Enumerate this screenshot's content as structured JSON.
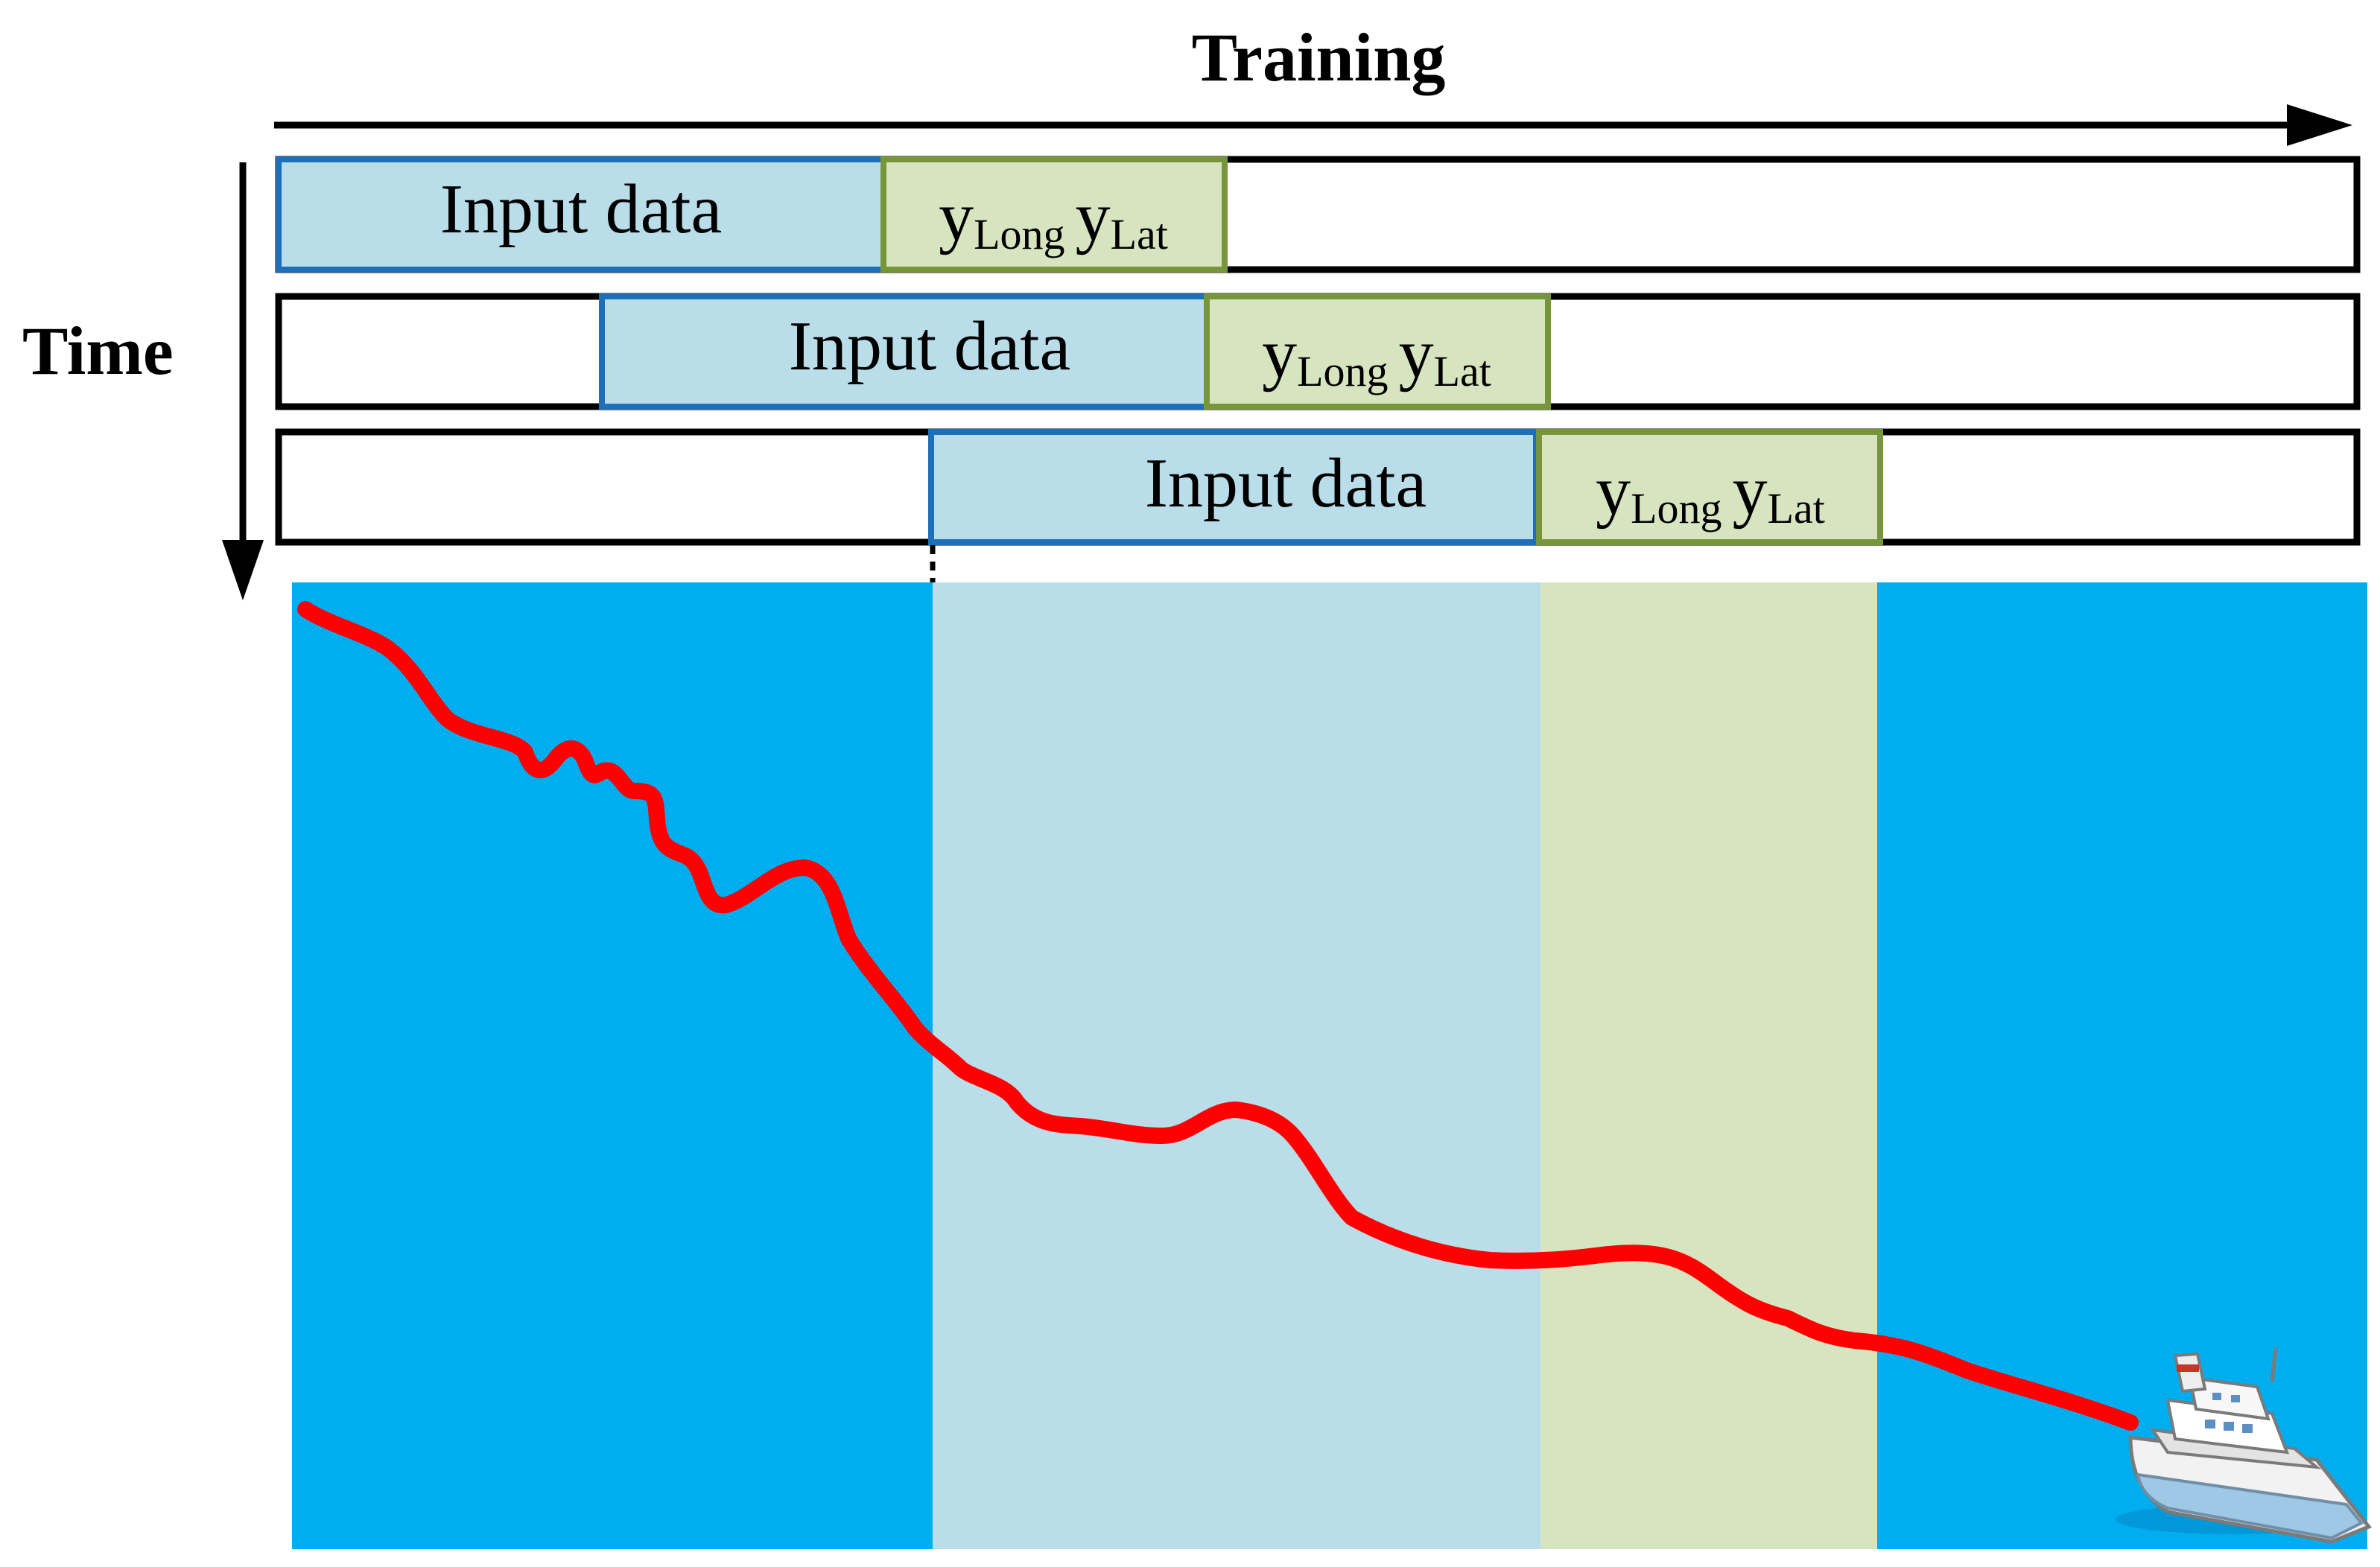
{
  "title": "Training",
  "time_label": "Time",
  "rows": [
    {
      "input_label": "Input data",
      "y_main": "y",
      "sub1": "Long",
      "y_main2": "y",
      "sub2": "Lat"
    },
    {
      "input_label": "Input data",
      "y_main": "y",
      "sub1": "Long",
      "y_main2": "y",
      "sub2": "Lat"
    },
    {
      "input_label": "Input data",
      "y_main": "y",
      "sub1": "Long",
      "y_main2": "y",
      "sub2": "Lat"
    }
  ],
  "colors": {
    "sea": "#00AEEF",
    "input_fill": "#B9DDE9",
    "input_border": "#1F6FB8",
    "output_fill": "#D6E4C0",
    "output_border": "#77963C",
    "trajectory": "#FF0000",
    "outline": "#000000"
  },
  "icons": {
    "vessel": "ship-icon"
  }
}
